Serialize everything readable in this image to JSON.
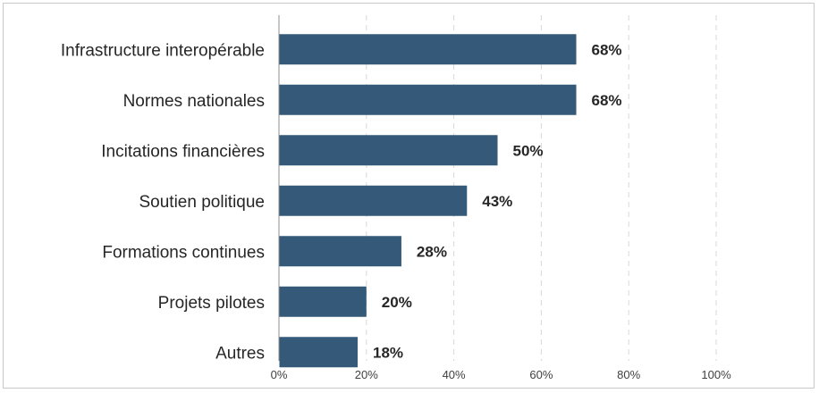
{
  "chart_data": {
    "type": "bar",
    "orientation": "horizontal",
    "categories": [
      "Infrastructure interopérable",
      "Normes nationales",
      "Incitations financières",
      "Soutien politique",
      "Formations continues",
      "Projets pilotes",
      "Autres"
    ],
    "values": [
      68,
      68,
      50,
      43,
      28,
      20,
      18
    ],
    "data_labels": [
      "68%",
      "68%",
      "50%",
      "43%",
      "28%",
      "20%",
      "18%"
    ],
    "xlim": [
      0,
      100
    ],
    "xticks": [
      0,
      20,
      40,
      60,
      80,
      100
    ],
    "xtick_labels": [
      "0%",
      "20%",
      "40%",
      "60%",
      "80%",
      "100%"
    ],
    "title": "",
    "xlabel": "",
    "ylabel": "",
    "grid": "vertical dashed",
    "legend": "none",
    "bar_color": "#355a79"
  }
}
